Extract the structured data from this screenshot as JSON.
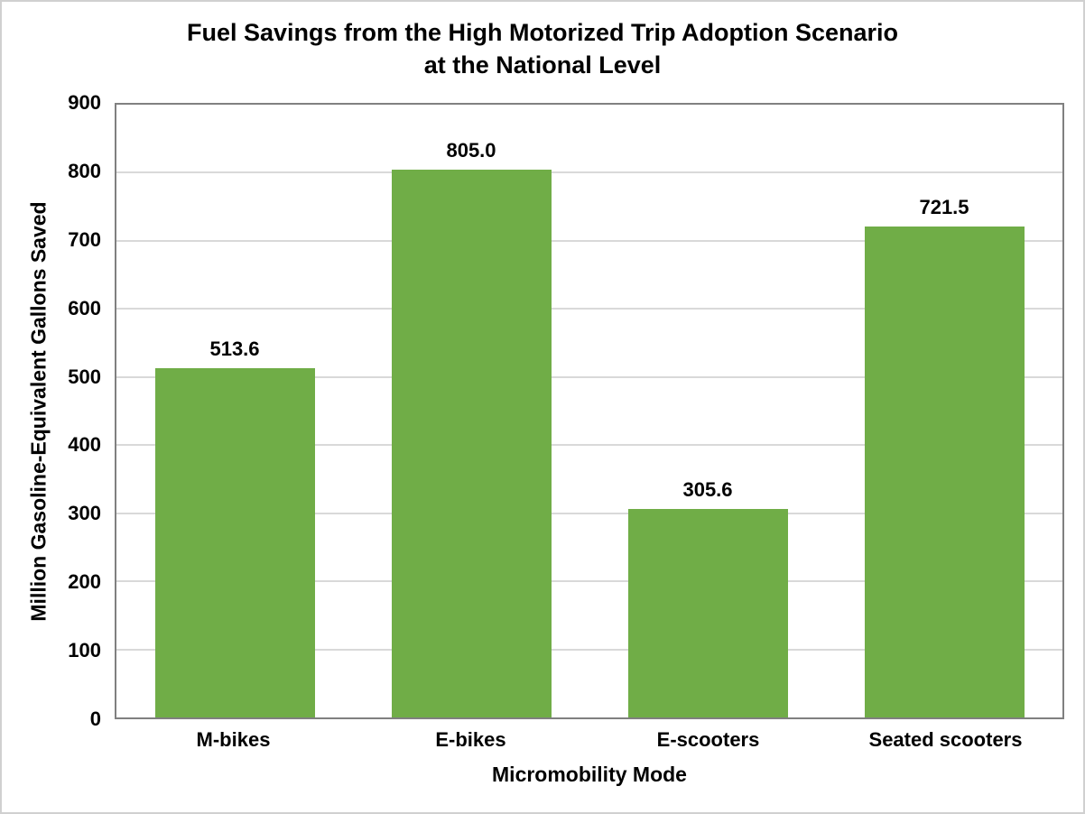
{
  "chart_data": {
    "type": "bar",
    "title": "Fuel Savings from the High Motorized Trip Adoption Scenario at the National Level",
    "title_lines": [
      "Fuel Savings from the High Motorized Trip Adoption Scenario",
      "at the National Level"
    ],
    "xlabel": "Micromobility Mode",
    "ylabel": "Million Gasoline-Equivalent Gallons Saved",
    "categories": [
      "M-bikes",
      "E-bikes",
      "E-scooters",
      "Seated scooters"
    ],
    "values": [
      513.6,
      805.0,
      305.6,
      721.5
    ],
    "value_labels": [
      "513.6",
      "805.0",
      "305.6",
      "721.5"
    ],
    "ylim": [
      0,
      900
    ],
    "ytick_interval": 100,
    "yticks": [
      0,
      100,
      200,
      300,
      400,
      500,
      600,
      700,
      800,
      900
    ],
    "grid": "horizontal",
    "legend": "none",
    "colors": {
      "bar_fill": "#70AD47",
      "axis_line": "#808080",
      "gridline": "#D9D9D9",
      "text": "#000000",
      "background": "#FFFFFF",
      "outer_border": "#D0D0D0"
    }
  }
}
